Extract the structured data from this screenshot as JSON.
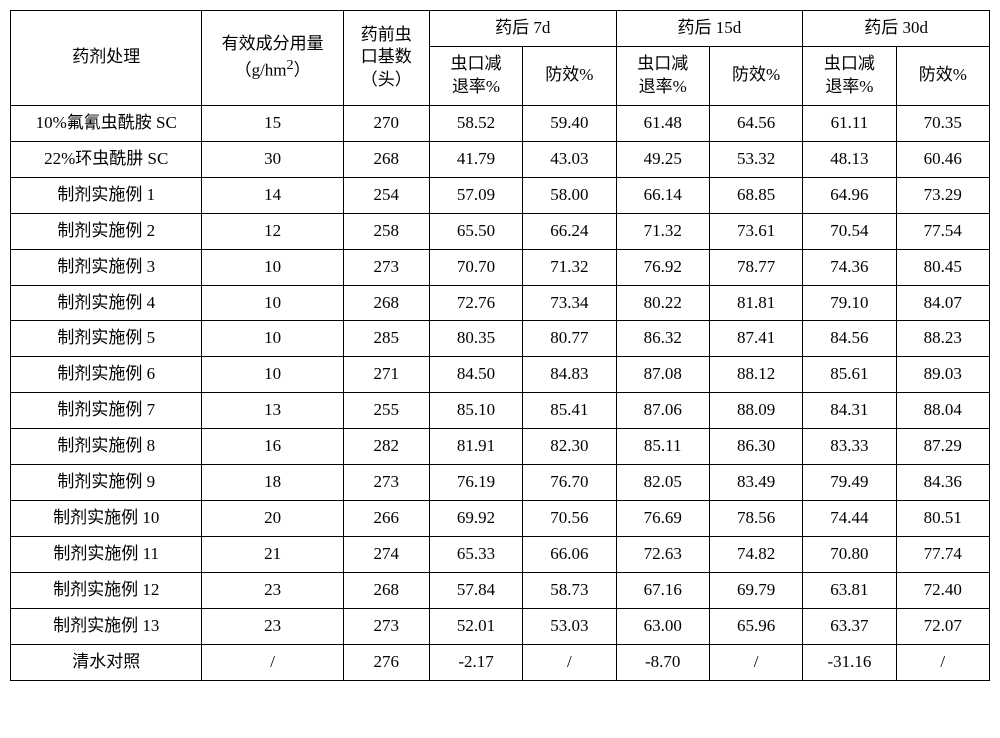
{
  "table": {
    "header": {
      "treatment": "药剂处理",
      "dose_line1": "有效成分用量",
      "dose_line2": "（g/hm",
      "dose_sup": "2",
      "dose_line2_close": "）",
      "preBase_line1": "药前虫",
      "preBase_line2": "口基数",
      "preBase_line3": "（头）",
      "d7": "药后 7d",
      "d15": "药后 15d",
      "d30": "药后 30d",
      "reduction_line1": "虫口减",
      "reduction_line2": "退率%",
      "efficacy": "防效%"
    },
    "rows": [
      {
        "treatment": "10%氟氰虫酰胺 SC",
        "dose": "15",
        "pre": "270",
        "d7r": "58.52",
        "d7e": "59.40",
        "d15r": "61.48",
        "d15e": "64.56",
        "d30r": "61.11",
        "d30e": "70.35"
      },
      {
        "treatment": "22%环虫酰肼 SC",
        "dose": "30",
        "pre": "268",
        "d7r": "41.79",
        "d7e": "43.03",
        "d15r": "49.25",
        "d15e": "53.32",
        "d30r": "48.13",
        "d30e": "60.46"
      },
      {
        "treatment": "制剂实施例 1",
        "dose": "14",
        "pre": "254",
        "d7r": "57.09",
        "d7e": "58.00",
        "d15r": "66.14",
        "d15e": "68.85",
        "d30r": "64.96",
        "d30e": "73.29"
      },
      {
        "treatment": "制剂实施例 2",
        "dose": "12",
        "pre": "258",
        "d7r": "65.50",
        "d7e": "66.24",
        "d15r": "71.32",
        "d15e": "73.61",
        "d30r": "70.54",
        "d30e": "77.54"
      },
      {
        "treatment": "制剂实施例 3",
        "dose": "10",
        "pre": "273",
        "d7r": "70.70",
        "d7e": "71.32",
        "d15r": "76.92",
        "d15e": "78.77",
        "d30r": "74.36",
        "d30e": "80.45"
      },
      {
        "treatment": "制剂实施例 4",
        "dose": "10",
        "pre": "268",
        "d7r": "72.76",
        "d7e": "73.34",
        "d15r": "80.22",
        "d15e": "81.81",
        "d30r": "79.10",
        "d30e": "84.07"
      },
      {
        "treatment": "制剂实施例 5",
        "dose": "10",
        "pre": "285",
        "d7r": "80.35",
        "d7e": "80.77",
        "d15r": "86.32",
        "d15e": "87.41",
        "d30r": "84.56",
        "d30e": "88.23"
      },
      {
        "treatment": "制剂实施例 6",
        "dose": "10",
        "pre": "271",
        "d7r": "84.50",
        "d7e": "84.83",
        "d15r": "87.08",
        "d15e": "88.12",
        "d30r": "85.61",
        "d30e": "89.03"
      },
      {
        "treatment": "制剂实施例 7",
        "dose": "13",
        "pre": "255",
        "d7r": "85.10",
        "d7e": "85.41",
        "d15r": "87.06",
        "d15e": "88.09",
        "d30r": "84.31",
        "d30e": "88.04"
      },
      {
        "treatment": "制剂实施例 8",
        "dose": "16",
        "pre": "282",
        "d7r": "81.91",
        "d7e": "82.30",
        "d15r": "85.11",
        "d15e": "86.30",
        "d30r": "83.33",
        "d30e": "87.29"
      },
      {
        "treatment": "制剂实施例 9",
        "dose": "18",
        "pre": "273",
        "d7r": "76.19",
        "d7e": "76.70",
        "d15r": "82.05",
        "d15e": "83.49",
        "d30r": "79.49",
        "d30e": "84.36"
      },
      {
        "treatment": "制剂实施例 10",
        "dose": "20",
        "pre": "266",
        "d7r": "69.92",
        "d7e": "70.56",
        "d15r": "76.69",
        "d15e": "78.56",
        "d30r": "74.44",
        "d30e": "80.51"
      },
      {
        "treatment": "制剂实施例 11",
        "dose": "21",
        "pre": "274",
        "d7r": "65.33",
        "d7e": "66.06",
        "d15r": "72.63",
        "d15e": "74.82",
        "d30r": "70.80",
        "d30e": "77.74"
      },
      {
        "treatment": "制剂实施例 12",
        "dose": "23",
        "pre": "268",
        "d7r": "57.84",
        "d7e": "58.73",
        "d15r": "67.16",
        "d15e": "69.79",
        "d30r": "63.81",
        "d30e": "72.40"
      },
      {
        "treatment": "制剂实施例 13",
        "dose": "23",
        "pre": "273",
        "d7r": "52.01",
        "d7e": "53.03",
        "d15r": "63.00",
        "d15e": "65.96",
        "d30r": "63.37",
        "d30e": "72.07"
      },
      {
        "treatment": "清水对照",
        "dose": "/",
        "pre": "276",
        "d7r": "-2.17",
        "d7e": "/",
        "d15r": "-8.70",
        "d15e": "/",
        "d30r": "-31.16",
        "d30e": "/"
      }
    ]
  }
}
